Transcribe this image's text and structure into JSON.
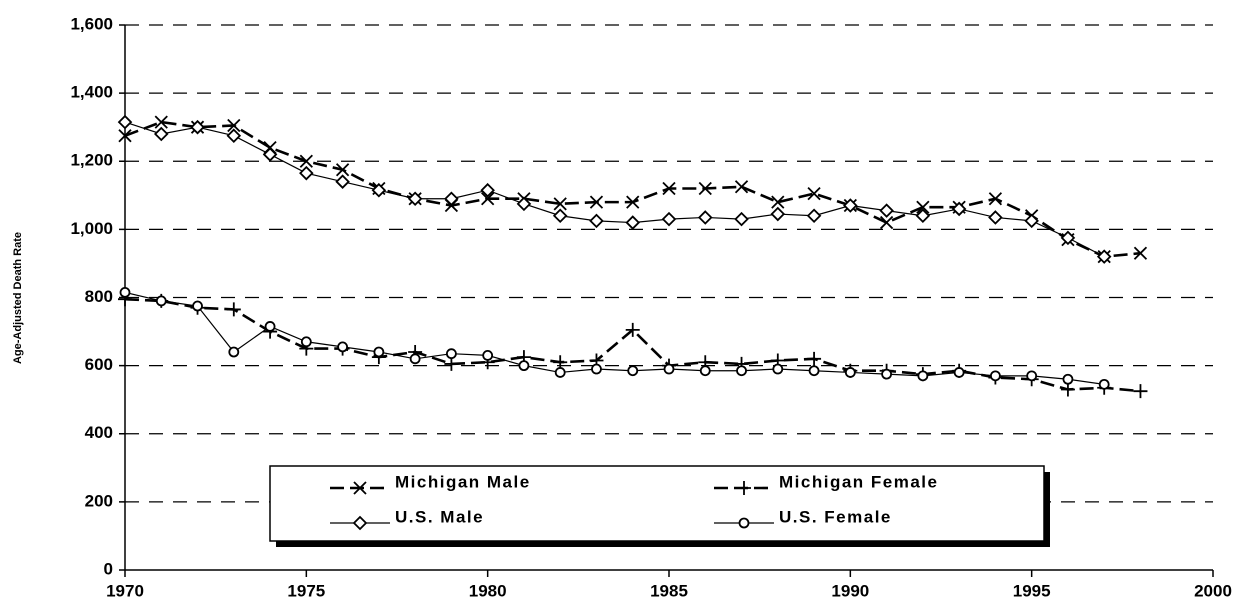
{
  "chart_data": {
    "type": "line",
    "ylabel": "Age-Adjusted Death Rate",
    "x": [
      1970,
      1971,
      1972,
      1973,
      1974,
      1975,
      1976,
      1977,
      1978,
      1979,
      1980,
      1981,
      1982,
      1983,
      1984,
      1985,
      1986,
      1987,
      1988,
      1989,
      1990,
      1991,
      1992,
      1993,
      1994,
      1995,
      1996,
      1997,
      1998
    ],
    "xlim": [
      1970,
      2000
    ],
    "xticks": [
      1970,
      1975,
      1980,
      1985,
      1990,
      1995,
      2000
    ],
    "ylim": [
      0,
      1600
    ],
    "yticks": [
      0,
      200,
      400,
      600,
      800,
      {
        "value": 1000,
        "label": "1,000"
      },
      {
        "value": 1200,
        "label": "1,200"
      },
      {
        "value": 1400,
        "label": "1,400"
      },
      {
        "value": 1600,
        "label": "1,600"
      }
    ],
    "grid": true,
    "series": [
      {
        "name": "Michigan Male",
        "color": "#000000",
        "marker": "x",
        "linestyle": "dashed",
        "values": [
          1275,
          1315,
          1300,
          1305,
          1240,
          1200,
          1175,
          1120,
          1090,
          1070,
          1090,
          1090,
          1075,
          1080,
          1080,
          1120,
          1120,
          1125,
          1080,
          1105,
          1070,
          1020,
          1065,
          1065,
          1090,
          1040,
          970,
          920,
          930
        ]
      },
      {
        "name": "Michigan Female",
        "color": "#000000",
        "marker": "plus",
        "linestyle": "dashed",
        "values": [
          795,
          790,
          770,
          765,
          700,
          650,
          650,
          625,
          640,
          605,
          610,
          625,
          610,
          615,
          705,
          600,
          610,
          605,
          615,
          620,
          585,
          585,
          575,
          585,
          565,
          560,
          530,
          535,
          525
        ]
      },
      {
        "name": "U.S. Male",
        "color": "#000000",
        "marker": "diamond",
        "linestyle": "solid",
        "values": [
          1315,
          1280,
          1300,
          1275,
          1220,
          1165,
          1140,
          1115,
          1090,
          1090,
          1115,
          1075,
          1040,
          1025,
          1020,
          1030,
          1035,
          1030,
          1045,
          1040,
          1070,
          1055,
          1040,
          1060,
          1035,
          1025,
          975,
          920,
          null
        ]
      },
      {
        "name": "U.S. Female",
        "color": "#000000",
        "marker": "circle",
        "linestyle": "solid",
        "values": [
          815,
          790,
          775,
          640,
          715,
          670,
          655,
          640,
          620,
          635,
          630,
          600,
          580,
          590,
          585,
          590,
          585,
          585,
          590,
          585,
          580,
          575,
          570,
          580,
          570,
          570,
          560,
          545,
          null
        ]
      }
    ]
  }
}
